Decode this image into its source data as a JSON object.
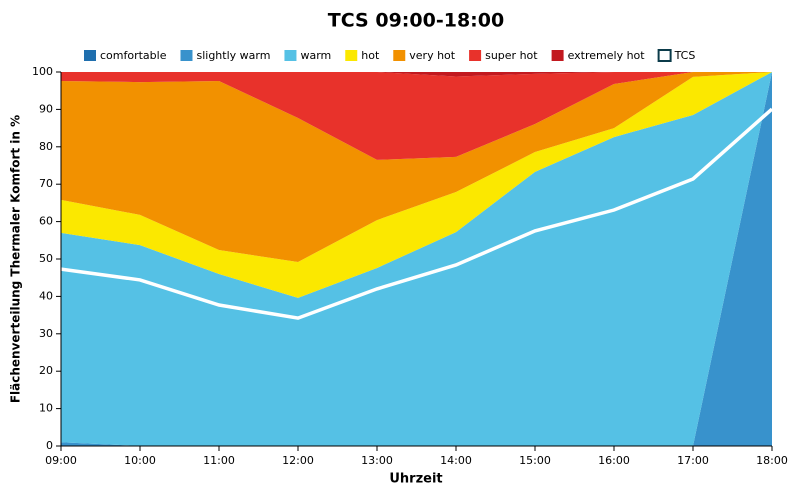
{
  "chart_data": {
    "type": "stacked_area",
    "title": "TCS 09:00-18:00",
    "x_label": "Uhrzeit",
    "y_label": "Flächenverteilung Thermaler Komfort in %",
    "categories": [
      "09:00",
      "10:00",
      "11:00",
      "12:00",
      "13:00",
      "14:00",
      "15:00",
      "16:00",
      "17:00",
      "18:00"
    ],
    "series": [
      {
        "name": "comfortable",
        "color": "#1f6fae",
        "values": [
          0,
          0,
          0,
          0,
          0,
          0,
          0,
          0,
          0,
          0
        ]
      },
      {
        "name": "slightly warm",
        "color": "#3892cc",
        "values": [
          1,
          0,
          0,
          0,
          0,
          0,
          0,
          0,
          0,
          100
        ]
      },
      {
        "name": "warm",
        "color": "#55c1e5",
        "values": [
          56,
          53.7,
          46,
          39.6,
          47.6,
          57.2,
          73.3,
          82.6,
          88.5,
          0
        ]
      },
      {
        "name": "hot",
        "color": "#fbe800",
        "values": [
          8.8,
          8.1,
          6.4,
          9.6,
          12.8,
          10.7,
          5.3,
          2.4,
          10.2,
          0
        ]
      },
      {
        "name": "very hot",
        "color": "#f29100",
        "values": [
          31.8,
          35.5,
          45.2,
          38.5,
          16.1,
          9.4,
          7.5,
          11.8,
          1.3,
          0
        ]
      },
      {
        "name": "super hot",
        "color": "#e8322b",
        "values": [
          2.4,
          2.7,
          2.4,
          12.3,
          23.5,
          21.5,
          13.4,
          3.2,
          0,
          0
        ]
      },
      {
        "name": "extremely hot",
        "color": "#c2191f",
        "values": [
          0,
          0,
          0,
          0,
          0,
          1.2,
          0.5,
          0,
          0,
          0
        ]
      }
    ],
    "line": {
      "name": "TCS",
      "color": "#ffffff",
      "values": [
        47.3,
        44.4,
        37.7,
        34.2,
        42,
        48.4,
        57.5,
        63.1,
        71.4,
        90.1
      ]
    },
    "ylim": [
      0,
      100
    ],
    "yticks": [
      0,
      10,
      20,
      30,
      40,
      50,
      60,
      70,
      80,
      90,
      100
    ],
    "grid": false
  }
}
